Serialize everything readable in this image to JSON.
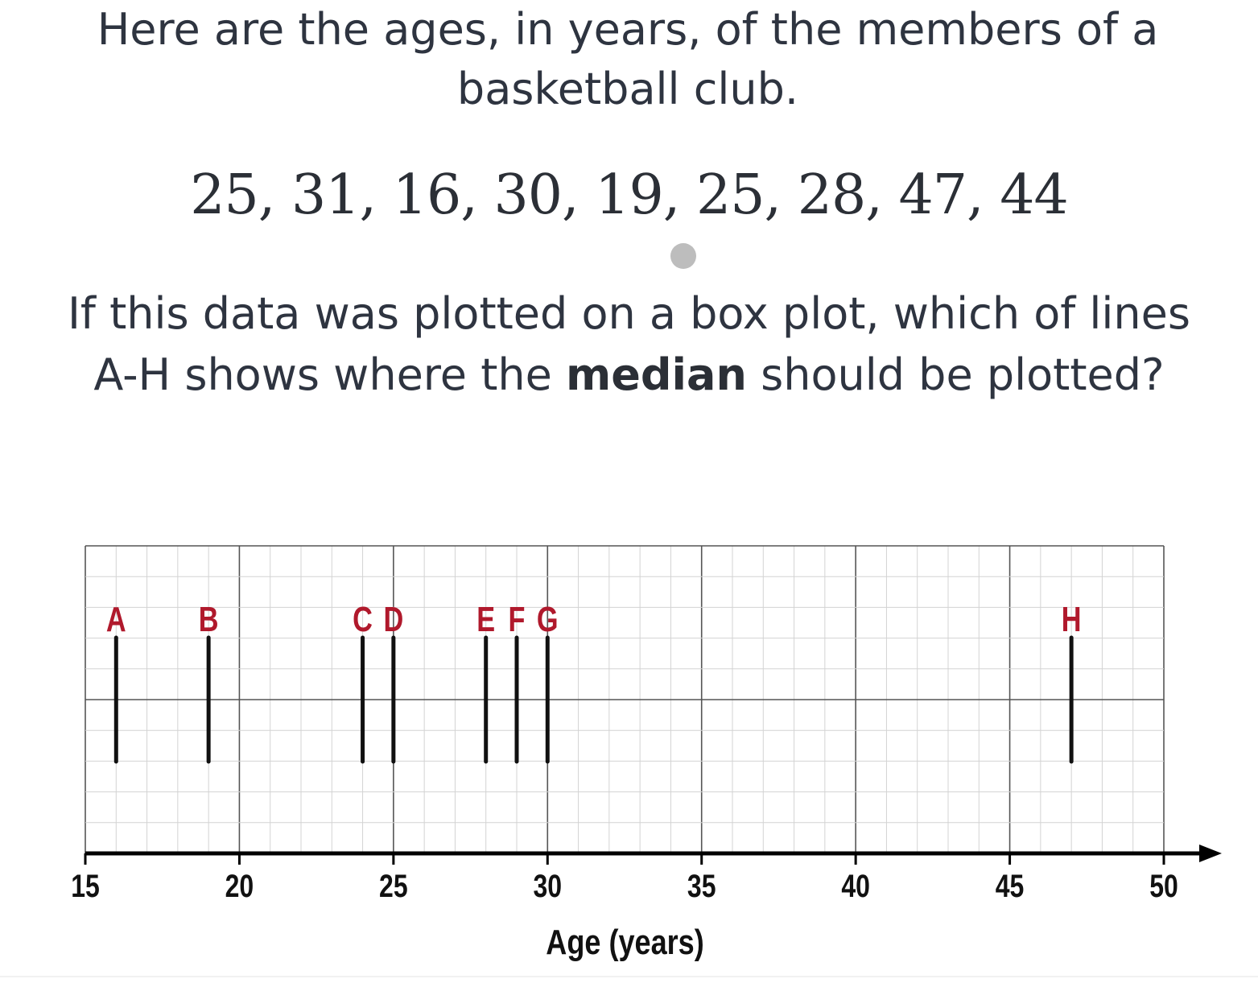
{
  "intro": {
    "line1": "Here are the ages, in years, of the members of a",
    "line2": "basketball club."
  },
  "data_list": "25, 31, 16, 30, 19, 25, 28, 47, 44",
  "question": {
    "part1": "If this data was plotted on a box plot, which of lines",
    "part2_before": "A-H shows where the ",
    "bold": "median",
    "part2_after": " should be plotted?"
  },
  "colors": {
    "label": "#b0192c",
    "line": "#111111",
    "grid_minor": "#d3d3d3",
    "grid_major": "#555555"
  },
  "chart_data": {
    "type": "number-line",
    "xlabel": "Age (years)",
    "xlim": [
      15,
      50
    ],
    "ticks": [
      15,
      20,
      25,
      30,
      35,
      40,
      45,
      50
    ],
    "minor_step": 1,
    "lines": [
      {
        "label": "A",
        "x": 16
      },
      {
        "label": "B",
        "x": 19
      },
      {
        "label": "C",
        "x": 24
      },
      {
        "label": "D",
        "x": 25
      },
      {
        "label": "E",
        "x": 28
      },
      {
        "label": "F",
        "x": 29
      },
      {
        "label": "G",
        "x": 30
      },
      {
        "label": "H",
        "x": 47
      }
    ]
  }
}
